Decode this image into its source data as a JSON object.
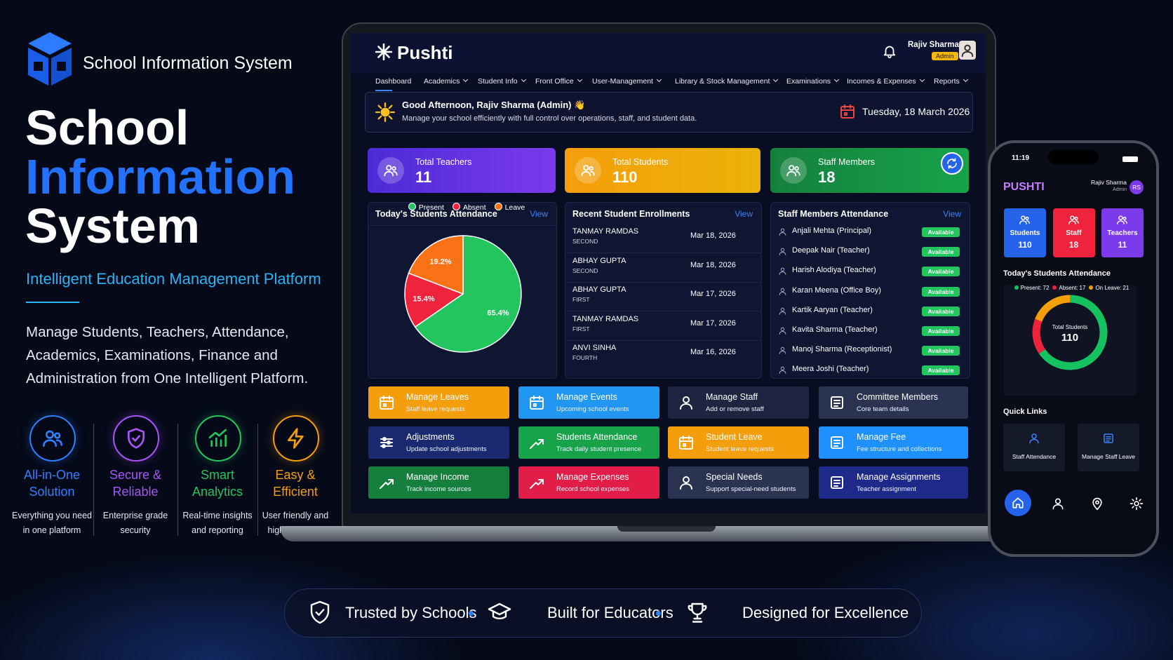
{
  "brand": {
    "title": "School Information System"
  },
  "hero": {
    "title_lines": [
      "School",
      "Information",
      "System"
    ],
    "subtitle": "Intelligent Education Management Platform",
    "description": [
      "Manage Students, Teachers, Attendance,",
      "Academics, Examinations, Finance and",
      "Administration from One Intelligent Platform."
    ]
  },
  "features": [
    {
      "title": [
        "All-in-One",
        "Solution"
      ],
      "description": [
        "Everything you need",
        "in one platform"
      ]
    },
    {
      "title": [
        "Secure &",
        "Reliable"
      ],
      "description": [
        "Enterprise grade",
        "security"
      ]
    },
    {
      "title": [
        "Smart",
        "Analytics"
      ],
      "description": [
        "Real-time insights",
        "and reporting"
      ]
    },
    {
      "title": [
        "Easy &",
        "Efficient"
      ],
      "description": [
        "User friendly and",
        "highly efficient"
      ]
    }
  ],
  "dashboard": {
    "app_name": "Pushti",
    "user": {
      "name": "Rajiv Sharma",
      "role": "Admin"
    },
    "nav": [
      "Dashboard",
      "Academics",
      "Student Info",
      "Front Office",
      "User-Management",
      "Library & Stock Management",
      "Examinations",
      "Incomes & Expenses",
      "Reports"
    ],
    "greeting": {
      "title": "Good Afternoon, Rajiv Sharma (Admin) 👋",
      "message": "Manage your school efficiently with full control over operations, staff, and student data.",
      "date": "Tuesday, 18 March 2026"
    },
    "stats": [
      {
        "label": "Total Teachers",
        "value": 11
      },
      {
        "label": "Total Students",
        "value": 110
      },
      {
        "label": "Staff Members",
        "value": 18
      }
    ],
    "view_label": "View",
    "enrollments": {
      "title": "Recent Student Enrollments",
      "rows": [
        {
          "name": "TANMAY RAMDAS",
          "class": "SECOND",
          "date": "Mar 18, 2026"
        },
        {
          "name": "ABHAY GUPTA",
          "class": "SECOND",
          "date": "Mar 18, 2026"
        },
        {
          "name": "ABHAY GUPTA",
          "class": "FIRST",
          "date": "Mar 17, 2026"
        },
        {
          "name": "TANMAY RAMDAS",
          "class": "FIRST",
          "date": "Mar 17, 2026"
        },
        {
          "name": "ANVI SINHA",
          "class": "FOURTH",
          "date": "Mar 16, 2026"
        }
      ]
    },
    "staff_attendance": {
      "title": "Staff Members Attendance",
      "rows": [
        {
          "name": "Anjali Mehta (Principal)",
          "status": "Available"
        },
        {
          "name": "Deepak Nair (Teacher)",
          "status": "Available"
        },
        {
          "name": "Harish Alodiya (Teacher)",
          "status": "Available"
        },
        {
          "name": "Karan Meena (Office Boy)",
          "status": "Available"
        },
        {
          "name": "Kartik Aaryan (Teacher)",
          "status": "Available"
        },
        {
          "name": "Kavita Sharma (Teacher)",
          "status": "Available"
        },
        {
          "name": "Manoj Sharma (Receptionist)",
          "status": "Available"
        },
        {
          "name": "Meera Joshi (Teacher)",
          "status": "Available"
        }
      ]
    },
    "actions": [
      {
        "title": "Manage Leaves",
        "subtitle": "Staff leave requests"
      },
      {
        "title": "Manage Events",
        "subtitle": "Upcoming school events"
      },
      {
        "title": "Manage Staff",
        "subtitle": "Add or remove staff"
      },
      {
        "title": "Committee Members",
        "subtitle": "Core team details"
      },
      {
        "title": "Adjustments",
        "subtitle": "Update school adjustments"
      },
      {
        "title": "Students Attendance",
        "subtitle": "Track daily student presence"
      },
      {
        "title": "Student Leave",
        "subtitle": "Student leave requests"
      },
      {
        "title": "Manage Fee",
        "subtitle": "Fee structure and collections"
      },
      {
        "title": "Manage Income",
        "subtitle": "Track income sources"
      },
      {
        "title": "Manage Expenses",
        "subtitle": "Record school expenses"
      },
      {
        "title": "Special Needs",
        "subtitle": "Support special-need students"
      },
      {
        "title": "Manage Assignments",
        "subtitle": "Teacher assignment"
      }
    ]
  },
  "chart_data": [
    {
      "type": "pie",
      "title": "Today's Students Attendance",
      "categories": [
        "Present",
        "Absent",
        "Leave"
      ],
      "values": [
        65.4,
        15.4,
        19.2
      ],
      "value_labels": [
        "65.4%",
        "15.4%",
        "19.2%"
      ],
      "colors": [
        "#22c55e",
        "#ef233c",
        "#f97316"
      ]
    },
    {
      "type": "donut",
      "center_label": "Total Students",
      "center_value": 110,
      "categories": [
        "Present:",
        "Absent:",
        "On Leave:"
      ],
      "values": [
        72,
        17,
        21
      ],
      "colors": [
        "#16c25f",
        "#ef233c",
        "#f59e0b"
      ]
    }
  ],
  "phone": {
    "time": "11:19",
    "app_name": "PUSHTI",
    "user": {
      "name": "Rajiv Sharma",
      "role": "Admin",
      "initials": "RS"
    },
    "stats": [
      {
        "label": "Students",
        "value": 110
      },
      {
        "label": "Staff",
        "value": 18
      },
      {
        "label": "Teachers",
        "value": 11
      }
    ],
    "attendance_title": "Today's Students Attendance",
    "quick_links_title": "Quick Links",
    "quick_links": [
      "Staff Attendance",
      "Manage Staff Leave"
    ]
  },
  "footer": [
    "Trusted by Schools",
    "Built for Educators",
    "Designed for Excellence"
  ]
}
